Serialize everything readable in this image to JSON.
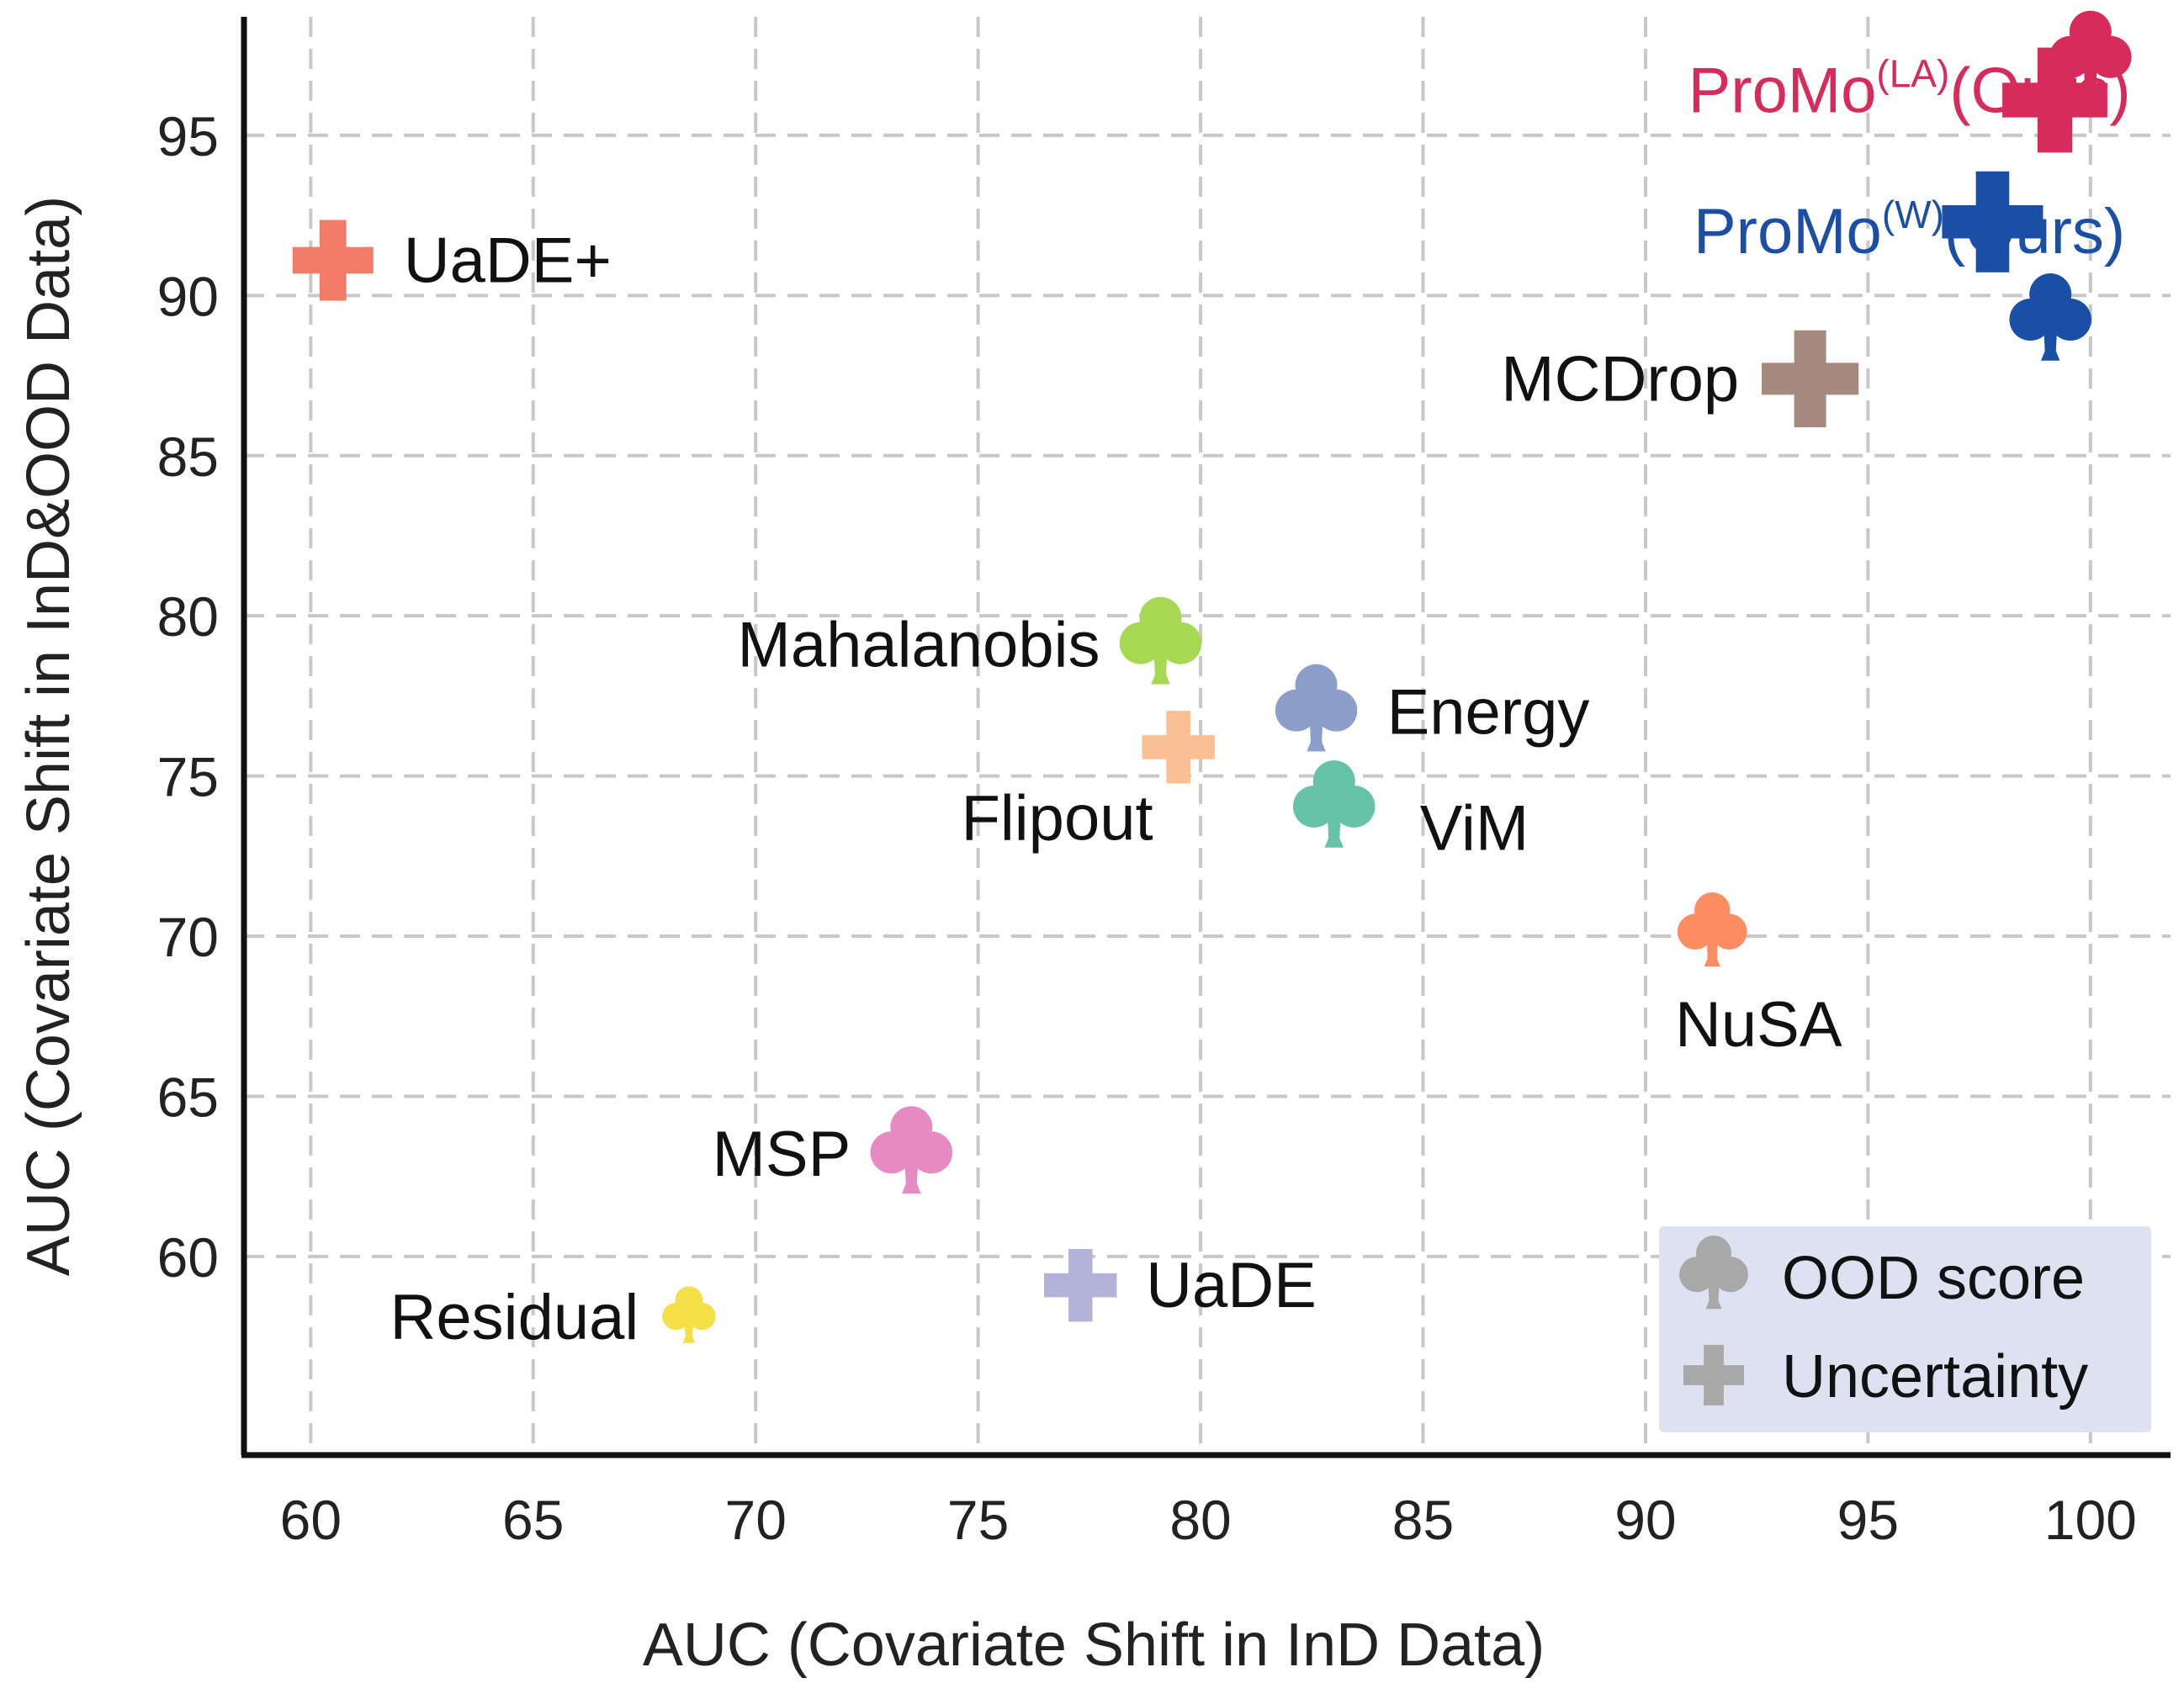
{
  "chart_data": {
    "type": "scatter",
    "xlabel": "AUC (Covariate Shift in InD Data)",
    "ylabel": "AUC (Covariate Shift in InD&OOD Data)",
    "xlim": [
      58.5,
      101.8
    ],
    "ylim": [
      53.8,
      98.7
    ],
    "xticks": [
      60,
      65,
      70,
      75,
      80,
      85,
      90,
      95,
      100
    ],
    "yticks": [
      60,
      65,
      70,
      75,
      80,
      85,
      90,
      95
    ],
    "grid": true,
    "legend": {
      "position": "bottom-right",
      "items": [
        {
          "label": "OOD score",
          "marker": "club-icon",
          "color": "#a8a8a8"
        },
        {
          "label": "Uncertainty",
          "marker": "plus-icon",
          "color": "#a8a8a8"
        }
      ]
    },
    "points": [
      {
        "label": "UaDE+",
        "marker": "plus",
        "x": 60.5,
        "y": 91.1,
        "color": "#f47a6a",
        "size": 1.0,
        "label_side": "right"
      },
      {
        "label": "MCDrop",
        "marker": "plus",
        "x": 93.7,
        "y": 87.4,
        "color": "#a68a80",
        "size": 1.2,
        "label_side": "left"
      },
      {
        "label": "Mahalanobis",
        "marker": "club",
        "x": 79.1,
        "y": 79.1,
        "color": "#a6d851",
        "size": 1.0,
        "label_side": "left"
      },
      {
        "label": "Energy",
        "marker": "club",
        "x": 82.6,
        "y": 77.0,
        "color": "#8c9fcb",
        "size": 1.0,
        "label_side": "right"
      },
      {
        "label": "Flipout",
        "marker": "plus",
        "x": 79.5,
        "y": 75.9,
        "color": "#fcbf93",
        "size": 0.9,
        "label_side": "below-left"
      },
      {
        "label": "ViM",
        "marker": "club",
        "x": 83.0,
        "y": 74.0,
        "color": "#66c3a5",
        "size": 1.0,
        "label_side": "right-below"
      },
      {
        "label": "NuSA",
        "marker": "club",
        "x": 91.5,
        "y": 70.1,
        "color": "#fc8d62",
        "size": 0.85,
        "label_side": "below"
      },
      {
        "label": "MSP",
        "marker": "club",
        "x": 73.5,
        "y": 63.2,
        "color": "#e78ac3",
        "size": 1.0,
        "label_side": "left"
      },
      {
        "label": "UaDE",
        "marker": "plus",
        "x": 77.3,
        "y": 59.1,
        "color": "#b3b3da",
        "size": 0.9,
        "label_side": "right"
      },
      {
        "label": "Residual",
        "marker": "club",
        "x": 68.5,
        "y": 58.1,
        "color": "#f5e047",
        "size": 0.65,
        "label_side": "left"
      },
      {
        "label": "ProMo(LA) club",
        "marker": "club",
        "x": 100.0,
        "y": 97.4,
        "color": "#d62b5b",
        "size": 1.0,
        "label_side": "none"
      },
      {
        "label": "ProMo(LA) plus",
        "marker": "plus",
        "x": 99.2,
        "y": 96.1,
        "color": "#d62b5b",
        "size": 1.3,
        "label_side": "none"
      },
      {
        "label": "ProMo(W) plus",
        "marker": "plus",
        "x": 97.8,
        "y": 92.3,
        "color": "#1b4fa5",
        "size": 1.25,
        "label_side": "none"
      },
      {
        "label": "ProMo(W) club",
        "marker": "club",
        "x": 99.1,
        "y": 89.2,
        "color": "#1b4fa5",
        "size": 1.0,
        "label_side": "none"
      }
    ],
    "annotations": [
      {
        "main": "ProMo",
        "sup": "(LA)",
        "rest": "(Ours)",
        "color": "#d62b5b",
        "x": 93.0,
        "y": 96.4
      },
      {
        "main": "ProMo",
        "sup": "(W)",
        "rest": "(Ours)",
        "color": "#1b4fa5",
        "x": 93.0,
        "y": 92.0
      }
    ]
  }
}
